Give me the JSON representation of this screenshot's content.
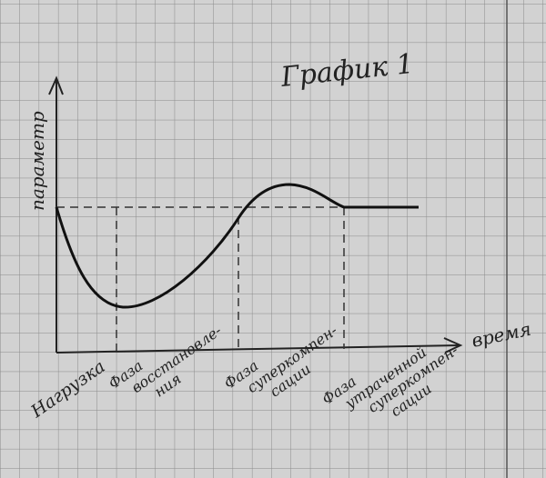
{
  "title": "График 1",
  "axes": {
    "y_label": "параметр",
    "x_label": "время"
  },
  "phases": [
    {
      "lines": [
        "Нагрузка"
      ]
    },
    {
      "lines": [
        "Фаза",
        "восстановле-",
        "ния"
      ]
    },
    {
      "lines": [
        "Фаза",
        "суперкомпен-",
        "сации"
      ]
    },
    {
      "lines": [
        "Фаза",
        "утраченной",
        "суперкомпен-",
        "сации"
      ]
    }
  ]
}
